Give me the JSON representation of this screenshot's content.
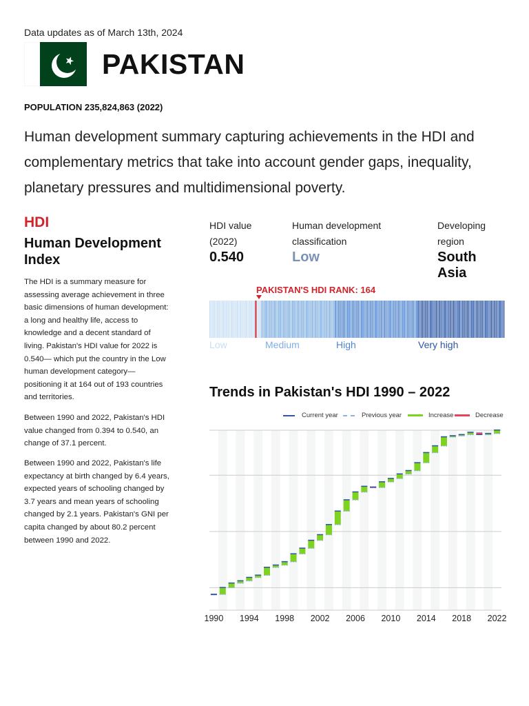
{
  "header": {
    "updates": "Data updates as of March 13th, 2024",
    "country": "PAKISTAN",
    "population": "POPULATION 235,824,863 (2022)",
    "summary": "Human development summary capturing achievements in the HDI and complementary metrics that take into account gender gaps, inequality, planetary pressures and multidimensional poverty.",
    "flag_icon": "pakistan-flag",
    "flag_colors": {
      "green": "#01411c",
      "white": "#ffffff"
    }
  },
  "hdi": {
    "tag": "HDI",
    "title": "Human Development Index",
    "paragraphs": [
      "The HDI is a summary measure for assessing average achievement in three basic dimensions of human development: a long and healthy life, access to knowledge and a decent standard of living. Pakistan's HDI value for 2022 is 0.540— which put the country in the Low human development category—positioning it at 164 out of 193 countries and territories.",
      "Between 1990 and 2022, Pakistan's HDI value changed from 0.394 to 0.540, an change of 37.1 percent.",
      "Between 1990 and 2022, Pakistan's life expectancy at birth changed by 6.4 years, expected years of schooling changed by 3.7 years and mean years of schooling changed by 2.1 years. Pakistan's GNI per capita changed by about 80.2 percent between 1990 and 2022."
    ],
    "value_label_1": "HDI value",
    "value_label_2": "(2022)",
    "value": "0.540",
    "class_label_1": "Human development",
    "class_label_2": "classification",
    "class_value": "Low",
    "region_label_1": "Developing",
    "region_label_2": "region",
    "region_value_1": "South",
    "region_value_2": "Asia",
    "rank_label": "PAKISTAN'S HDI RANK: 164",
    "rank": 164,
    "total_countries": 193,
    "categories": [
      {
        "label": "Low",
        "color": "#c6def5"
      },
      {
        "label": "Medium",
        "color": "#7eaee3"
      },
      {
        "label": "High",
        "color": "#4f86d3"
      },
      {
        "label": "Very high",
        "color": "#2c57a5"
      }
    ],
    "rank_color": "#d0232b"
  },
  "trend": {
    "title": "Trends in Pakistan's HDI 1990 – 2022",
    "legend": [
      {
        "label": "Current year",
        "color": "#2f55a4"
      },
      {
        "label": "Previous year",
        "color": "#8fb0e0"
      },
      {
        "label": "Increase",
        "color": "#7ed321"
      },
      {
        "label": "Decrease",
        "color": "#e8435a"
      }
    ]
  },
  "chart_data": {
    "type": "bar",
    "title": "Trends in Pakistan's HDI 1990 – 2022",
    "x": [
      1990,
      1991,
      1992,
      1993,
      1994,
      1995,
      1996,
      1997,
      1998,
      1999,
      2000,
      2001,
      2002,
      2003,
      2004,
      2005,
      2006,
      2007,
      2008,
      2009,
      2010,
      2011,
      2012,
      2013,
      2014,
      2015,
      2016,
      2017,
      2018,
      2019,
      2020,
      2021,
      2022
    ],
    "values": [
      0.394,
      0.4,
      0.404,
      0.406,
      0.409,
      0.411,
      0.418,
      0.42,
      0.423,
      0.43,
      0.435,
      0.442,
      0.447,
      0.456,
      0.468,
      0.478,
      0.485,
      0.49,
      0.489,
      0.494,
      0.497,
      0.501,
      0.504,
      0.511,
      0.52,
      0.526,
      0.534,
      0.535,
      0.536,
      0.538,
      0.536,
      0.537,
      0.54
    ],
    "x_tick_labels": [
      "1990",
      "1994",
      "1998",
      "2002",
      "2006",
      "2010",
      "2014",
      "2018",
      "2022"
    ],
    "ylim": [
      0.38,
      0.54
    ],
    "gridlines": [
      0.4,
      0.45,
      0.5
    ],
    "grid": true,
    "legend_position": "top-right"
  }
}
